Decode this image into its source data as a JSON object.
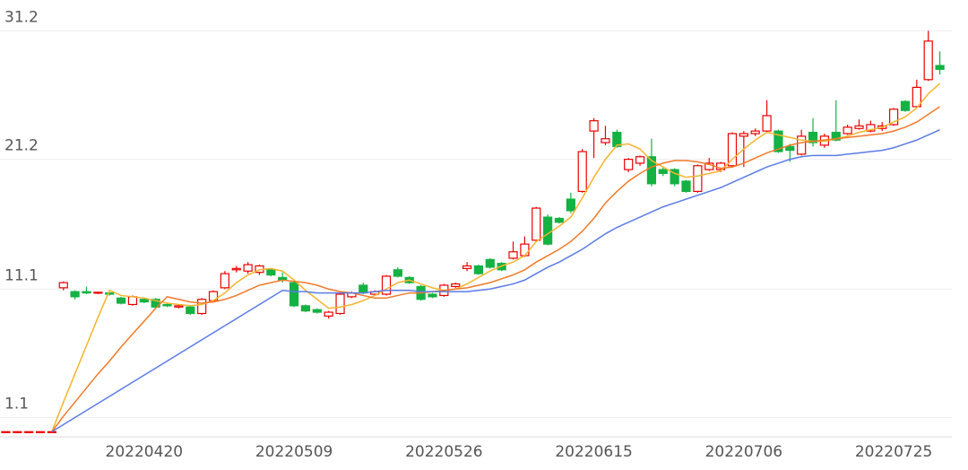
{
  "chart_data": {
    "type": "candlestick",
    "categories": [
      null,
      null,
      null,
      null,
      null,
      null,
      null,
      null,
      null,
      null,
      null,
      null,
      "20220420",
      null,
      null,
      null,
      null,
      null,
      null,
      null,
      null,
      null,
      null,
      null,
      null,
      "20220509",
      null,
      null,
      null,
      null,
      null,
      null,
      null,
      null,
      null,
      null,
      null,
      null,
      "20220526",
      null,
      null,
      null,
      null,
      null,
      null,
      null,
      null,
      null,
      null,
      null,
      null,
      "20220615",
      null,
      null,
      null,
      null,
      null,
      null,
      null,
      null,
      null,
      null,
      null,
      null,
      "20220706",
      null,
      null,
      null,
      null,
      null,
      null,
      null,
      null,
      null,
      null,
      null,
      null,
      "20220725",
      null,
      null,
      null,
      null
    ],
    "open": [
      0,
      0,
      0,
      0,
      0,
      11.2,
      10.9,
      10.9,
      10.8,
      10.8,
      10.4,
      9.9,
      10.3,
      10.3,
      9.9,
      9.7,
      9.7,
      9.2,
      10.2,
      11.2,
      12.6,
      12.5,
      12.4,
      12.6,
      12.0,
      11.6,
      9.8,
      9.5,
      9.0,
      9.2,
      10.5,
      11.4,
      10.7,
      10.7,
      12.6,
      12.0,
      11.3,
      10.7,
      10.6,
      11.3,
      12.7,
      12.9,
      13.4,
      13.1,
      13.5,
      13.7,
      14.9,
      16.7,
      16.6,
      18.1,
      18.7,
      23.4,
      22.5,
      23.3,
      20.4,
      20.9,
      21.4,
      20.4,
      20.4,
      19.5,
      18.7,
      20.4,
      20.4,
      20.7,
      23.0,
      23.2,
      23.4,
      23.4,
      22.2,
      21.6,
      23.3,
      22.3,
      23.3,
      23.2,
      23.6,
      23.4,
      23.6,
      23.9,
      25.7,
      25.3,
      27.4,
      28.5
    ],
    "close": [
      0,
      0,
      0,
      0,
      0,
      11.6,
      10.5,
      10.8,
      10.85,
      10.7,
      10.0,
      10.5,
      10.1,
      9.7,
      9.8,
      9.8,
      9.2,
      10.3,
      10.9,
      12.3,
      12.7,
      13.0,
      12.9,
      12.2,
      11.8,
      9.8,
      9.4,
      9.3,
      9.3,
      10.7,
      10.8,
      10.8,
      10.9,
      12.1,
      12.1,
      11.6,
      10.3,
      10.5,
      11.4,
      11.5,
      12.9,
      12.3,
      12.8,
      12.6,
      14.0,
      14.6,
      17.4,
      14.6,
      16.3,
      17.2,
      21.8,
      24.2,
      22.8,
      22.2,
      21.2,
      21.4,
      19.3,
      20.1,
      19.3,
      18.7,
      20.7,
      20.9,
      20.9,
      23.2,
      23.2,
      23.4,
      24.6,
      21.8,
      21.9,
      23.0,
      22.5,
      23.0,
      22.7,
      23.7,
      23.8,
      23.9,
      23.8,
      25.1,
      25.0,
      26.8,
      30.4,
      28.2
    ],
    "low": [
      0,
      0,
      0,
      0,
      0,
      11.0,
      10.3,
      10.7,
      10.7,
      10.6,
      9.9,
      9.8,
      10.0,
      9.6,
      9.7,
      9.6,
      9.1,
      9.1,
      10.1,
      11.1,
      12.4,
      12.3,
      12.2,
      12.1,
      11.6,
      9.7,
      9.3,
      9.2,
      8.8,
      9.1,
      10.4,
      10.7,
      10.6,
      10.6,
      12.0,
      11.5,
      10.2,
      10.4,
      10.5,
      11.2,
      12.5,
      12.2,
      12.7,
      12.5,
      13.4,
      13.6,
      14.8,
      14.5,
      16.2,
      17.0,
      18.6,
      21.3,
      22.3,
      22.1,
      20.2,
      20.7,
      19.1,
      19.9,
      19.1,
      18.6,
      18.6,
      20.3,
      20.2,
      20.6,
      20.6,
      23.0,
      23.3,
      21.7,
      21.0,
      21.5,
      22.2,
      22.1,
      22.6,
      23.1,
      23.5,
      23.3,
      23.4,
      23.8,
      24.9,
      25.2,
      27.3,
      27.8
    ],
    "high": [
      0,
      0,
      0,
      0,
      0,
      11.7,
      11.0,
      11.3,
      10.9,
      10.8,
      10.5,
      10.6,
      10.4,
      10.4,
      10.0,
      9.9,
      9.8,
      10.4,
      11.0,
      12.5,
      12.9,
      13.2,
      13.0,
      12.7,
      12.4,
      11.7,
      9.9,
      9.6,
      9.4,
      10.8,
      10.9,
      11.6,
      11.0,
      12.2,
      12.8,
      12.1,
      11.4,
      10.8,
      11.5,
      11.6,
      13.2,
      13.0,
      13.5,
      13.2,
      14.8,
      15.2,
      17.5,
      16.9,
      16.7,
      18.6,
      22.0,
      24.4,
      23.8,
      23.5,
      21.3,
      21.5,
      22.8,
      20.6,
      20.5,
      19.6,
      20.8,
      21.3,
      21.0,
      23.3,
      23.4,
      23.6,
      25.8,
      23.5,
      22.4,
      23.5,
      24.4,
      23.2,
      25.8,
      23.9,
      24.3,
      24.2,
      24.1,
      25.2,
      25.8,
      27.4,
      31.2,
      29.6
    ],
    "up_color": "#ec0000",
    "down_color": "#14b143",
    "lines": [
      {
        "color": "#f5b52e",
        "values": [
          null,
          null,
          null,
          null,
          0,
          2.3,
          4.5,
          6.7,
          8.9,
          11.0,
          10.6,
          10.5,
          10.4,
          10.2,
          10.0,
          9.9,
          9.8,
          9.9,
          10.2,
          10.8,
          11.6,
          12.2,
          12.6,
          12.7,
          12.5,
          11.8,
          11.0,
          10.3,
          9.6,
          9.7,
          9.9,
          10.2,
          10.6,
          11.1,
          11.6,
          11.8,
          11.5,
          11.2,
          11.0,
          11.1,
          11.5,
          12.0,
          12.5,
          12.9,
          13.2,
          13.7,
          14.8,
          15.4,
          16.0,
          16.7,
          18.2,
          19.8,
          21.2,
          22.3,
          22.4,
          22.0,
          21.1,
          20.6,
          20.1,
          19.8,
          19.9,
          20.1,
          20.3,
          21.2,
          22.0,
          22.7,
          23.3,
          23.1,
          22.9,
          22.7,
          22.6,
          22.6,
          22.8,
          23.0,
          23.3,
          23.5,
          23.7,
          24.1,
          24.5,
          25.2,
          26.3,
          27.1
        ]
      },
      {
        "color": "#f07a2a",
        "values": [
          null,
          null,
          null,
          null,
          0,
          1.2,
          2.3,
          3.4,
          4.5,
          5.5,
          6.6,
          7.6,
          8.6,
          9.6,
          10.5,
          10.3,
          10.1,
          10.0,
          10.1,
          10.3,
          10.6,
          11.0,
          11.4,
          11.6,
          11.8,
          11.7,
          11.6,
          11.4,
          11.1,
          10.9,
          10.8,
          10.6,
          10.4,
          10.4,
          10.6,
          10.8,
          10.8,
          10.9,
          11.0,
          11.1,
          11.2,
          11.4,
          11.6,
          11.9,
          12.2,
          12.6,
          13.2,
          13.7,
          14.2,
          14.8,
          15.6,
          16.6,
          17.8,
          18.7,
          19.5,
          20.1,
          20.6,
          20.9,
          21.1,
          21.1,
          21.0,
          20.8,
          20.5,
          20.6,
          20.9,
          21.3,
          21.7,
          22.0,
          22.3,
          22.5,
          22.6,
          22.7,
          22.8,
          22.9,
          23.0,
          23.1,
          23.2,
          23.4,
          23.7,
          24.1,
          24.7,
          25.3
        ]
      },
      {
        "color": "#5b7be6",
        "values": [
          null,
          null,
          null,
          null,
          0,
          0.55,
          1.1,
          1.65,
          2.2,
          2.75,
          3.3,
          3.85,
          4.4,
          4.95,
          5.5,
          6.05,
          6.6,
          7.15,
          7.7,
          8.25,
          8.8,
          9.35,
          9.9,
          10.45,
          11.0,
          10.9,
          10.9,
          10.8,
          10.8,
          10.8,
          10.8,
          10.8,
          10.9,
          11.0,
          11.0,
          11.0,
          10.9,
          10.9,
          10.9,
          10.9,
          10.9,
          11.0,
          11.1,
          11.3,
          11.5,
          11.8,
          12.3,
          12.8,
          13.2,
          13.7,
          14.2,
          14.8,
          15.4,
          15.9,
          16.3,
          16.7,
          17.1,
          17.5,
          17.8,
          18.1,
          18.4,
          18.7,
          19.0,
          19.4,
          19.8,
          20.2,
          20.6,
          20.9,
          21.2,
          21.4,
          21.5,
          21.5,
          21.5,
          21.6,
          21.7,
          21.8,
          21.9,
          22.1,
          22.4,
          22.7,
          23.1,
          23.5
        ]
      }
    ],
    "ylim": [
      -0.4,
      33.6
    ],
    "yticks": [
      1.1,
      11.1,
      21.2,
      31.2
    ],
    "grid": true
  }
}
